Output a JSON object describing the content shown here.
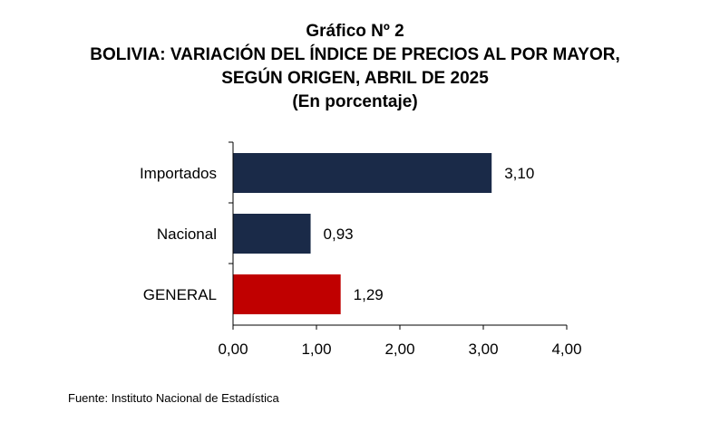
{
  "chart_data": {
    "type": "bar",
    "orientation": "horizontal",
    "title": "Gráfico Nº 2",
    "subtitle_lines": [
      "BOLIVIA: VARIACIÓN DEL ÍNDICE DE PRECIOS AL POR MAYOR,",
      "SEGÚN ORIGEN, ABRIL DE 2025",
      "(En porcentaje)"
    ],
    "categories": [
      "Importados",
      "Nacional",
      "GENERAL"
    ],
    "values": [
      3.1,
      0.93,
      1.29
    ],
    "value_labels": [
      "3,10",
      "0,93",
      "1,29"
    ],
    "bar_colors": [
      "#1a2a48",
      "#1a2a48",
      "#c00000"
    ],
    "xlim": [
      0,
      4
    ],
    "x_ticks": [
      0,
      1,
      2,
      3,
      4
    ],
    "x_tick_labels": [
      "0,00",
      "1,00",
      "2,00",
      "3,00",
      "4,00"
    ],
    "grid": false,
    "legend": "none"
  },
  "source": "Fuente: Instituto Nacional de Estadística"
}
